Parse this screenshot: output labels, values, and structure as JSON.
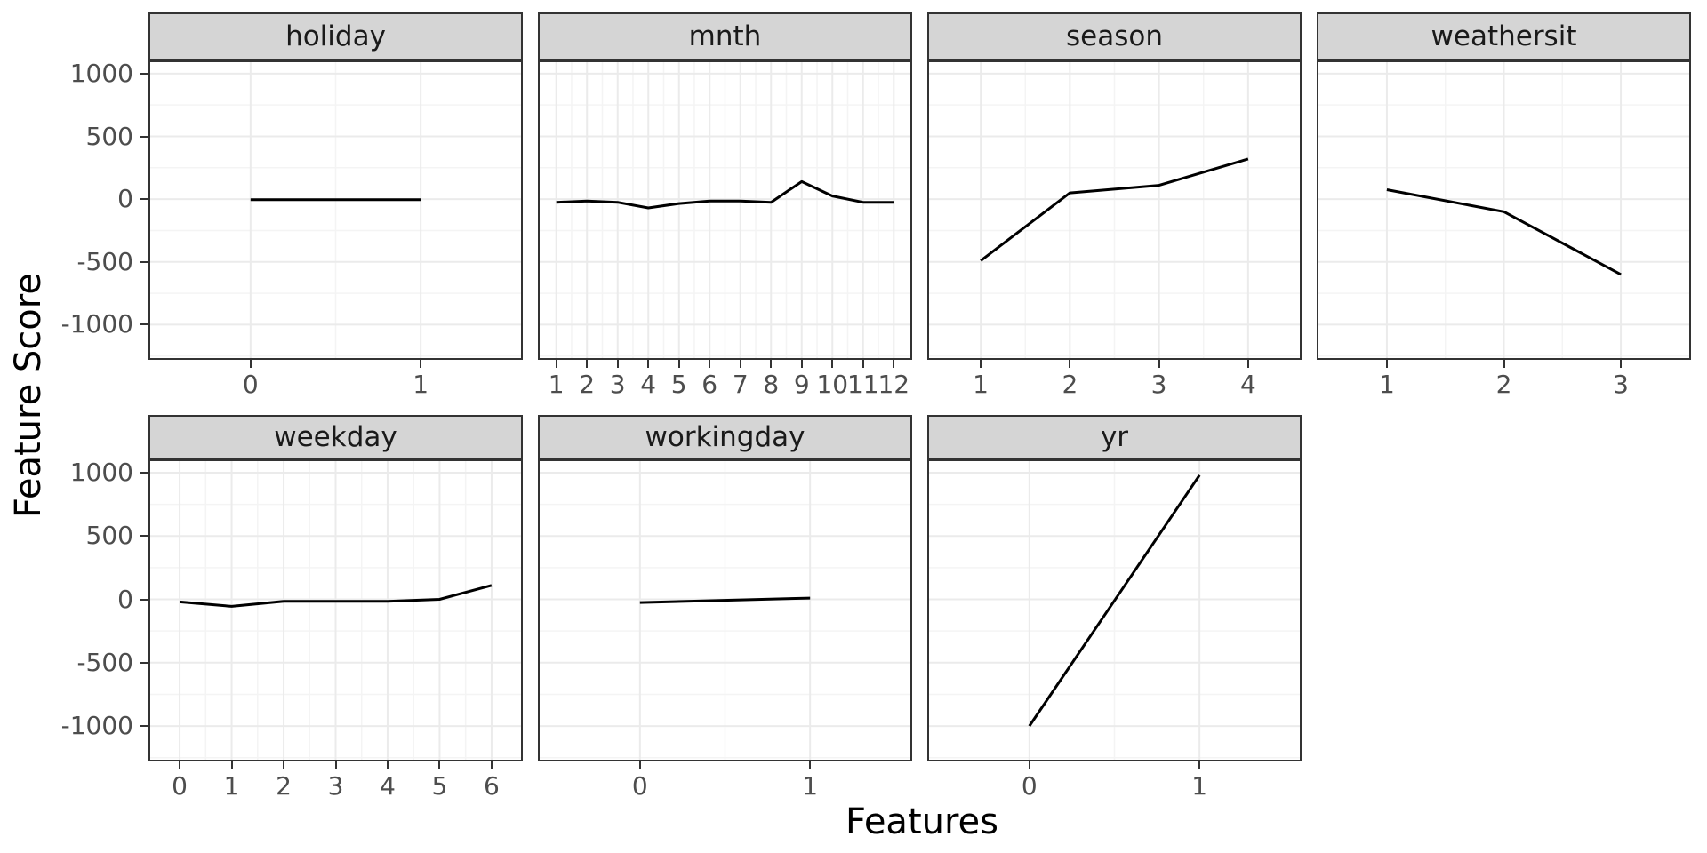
{
  "figure": {
    "y_axis_title": "Feature Score",
    "x_axis_title": "Features"
  },
  "chart_data": {
    "type": "line",
    "title": "",
    "xlabel": "Features",
    "ylabel": "Feature Score",
    "ylim": [
      -1280,
      1105
    ],
    "yticks": [
      1000,
      500,
      0,
      -500,
      -1000
    ],
    "ytick_labels": [
      "1000",
      "500",
      "0",
      "-500",
      "-1000"
    ],
    "grid": "major and minor, light gray on white",
    "legend_position": "none",
    "line_color": "#000000",
    "strip_bg_color": "#d5d5d5",
    "panel_border_color": "#333333",
    "grid_major_color": "#ebebeb",
    "grid_minor_color": "#f4f4f4",
    "tick_label_color": "#4d4d4d",
    "facet_layout": "2 rows x 4 cols, last bottom cell empty",
    "facets": [
      {
        "label": "holiday",
        "row": 0,
        "col": 0,
        "x": [
          0,
          1
        ],
        "y": [
          -5,
          -5
        ]
      },
      {
        "label": "mnth",
        "row": 0,
        "col": 1,
        "x": [
          1,
          2,
          3,
          4,
          5,
          6,
          7,
          8,
          9,
          10,
          11,
          12
        ],
        "y": [
          -25,
          -15,
          -25,
          -70,
          -35,
          -15,
          -15,
          -25,
          140,
          25,
          -25,
          -25
        ]
      },
      {
        "label": "season",
        "row": 0,
        "col": 2,
        "x": [
          1,
          2,
          3,
          4
        ],
        "y": [
          -490,
          50,
          110,
          320
        ]
      },
      {
        "label": "weathersit",
        "row": 0,
        "col": 3,
        "x": [
          1,
          2,
          3
        ],
        "y": [
          75,
          -100,
          -600
        ]
      },
      {
        "label": "weekday",
        "row": 1,
        "col": 0,
        "x": [
          0,
          1,
          2,
          3,
          4,
          5,
          6
        ],
        "y": [
          -20,
          -55,
          -15,
          -15,
          -15,
          0,
          110
        ]
      },
      {
        "label": "workingday",
        "row": 1,
        "col": 1,
        "x": [
          0,
          1
        ],
        "y": [
          -25,
          10
        ]
      },
      {
        "label": "yr",
        "row": 1,
        "col": 2,
        "x": [
          0,
          1
        ],
        "y": [
          -1000,
          980
        ]
      }
    ]
  }
}
